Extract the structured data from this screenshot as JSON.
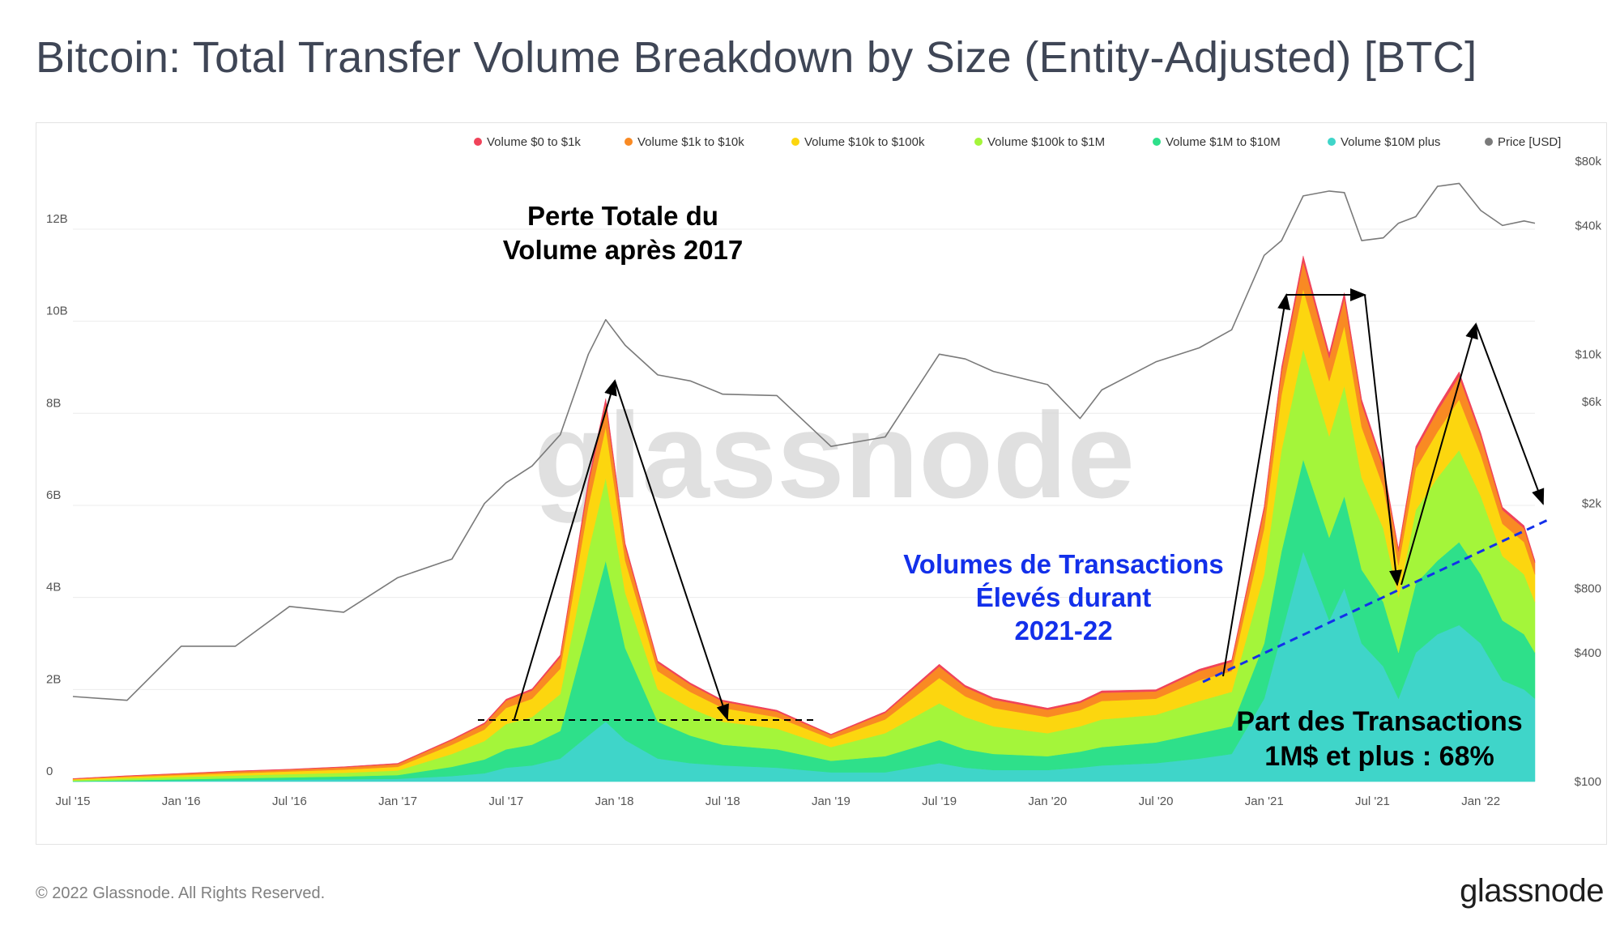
{
  "title": "Bitcoin: Total Transfer Volume Breakdown by Size (Entity-Adjusted) [BTC]",
  "footer": "© 2022 Glassnode. All Rights Reserved.",
  "brand": "glassnode",
  "watermark": "glassnode",
  "colors": {
    "v0_1k": "#f0435a",
    "v1k_10k": "#f98a23",
    "v10k_100k": "#fcd60f",
    "v100k_1m": "#a4f53a",
    "v1m_10m": "#2ee08a",
    "v10m_plus": "#3fd5c9",
    "price": "#7a7a7a",
    "annotation_black": "#000000",
    "annotation_blue": "#1330ea"
  },
  "chart_data": {
    "type": "area",
    "stacked": true,
    "title": "Bitcoin: Total Transfer Volume Breakdown by Size (Entity-Adjusted) [BTC]",
    "xlabel": "",
    "ylabel": "",
    "grid": true,
    "legend_position": "top-right",
    "x_ticks": [
      "Jul '15",
      "Jan '16",
      "Jul '16",
      "Jan '17",
      "Jul '17",
      "Jan '18",
      "Jul '18",
      "Jan '19",
      "Jul '19",
      "Jan '20",
      "Jul '20",
      "Jan '21",
      "Jul '21",
      "Jan '22"
    ],
    "y_left_ticks": [
      "0",
      "2B",
      "4B",
      "6B",
      "8B",
      "10B",
      "12B"
    ],
    "y_left_range": [
      0,
      13600000000
    ],
    "y_right_ticks": [
      "$100",
      "$400",
      "$800",
      "$2k",
      "$6k",
      "$10k",
      "$40k",
      "$80k"
    ],
    "y_right_scale": "log",
    "legend": [
      "Volume $0 to $1k",
      "Volume $1k to $10k",
      "Volume $10k to $100k",
      "Volume $100k to $1M",
      "Volume $1M to $10M",
      "Volume $10M plus",
      "Price [USD]"
    ],
    "x": [
      2015.5,
      2015.75,
      2016.0,
      2016.25,
      2016.5,
      2016.75,
      2017.0,
      2017.25,
      2017.4,
      2017.5,
      2017.62,
      2017.75,
      2017.88,
      2017.96,
      2018.05,
      2018.2,
      2018.35,
      2018.5,
      2018.75,
      2019.0,
      2019.25,
      2019.5,
      2019.62,
      2019.75,
      2020.0,
      2020.15,
      2020.25,
      2020.5,
      2020.7,
      2020.85,
      2021.0,
      2021.08,
      2021.18,
      2021.3,
      2021.37,
      2021.45,
      2021.55,
      2021.62,
      2021.7,
      2021.8,
      2021.9,
      2022.0,
      2022.1,
      2022.2,
      2022.25
    ],
    "series": [
      {
        "name": "Volume $10M plus",
        "values": [
          0.0,
          0.01,
          0.02,
          0.03,
          0.04,
          0.05,
          0.06,
          0.12,
          0.18,
          0.3,
          0.35,
          0.5,
          1.0,
          1.3,
          0.9,
          0.5,
          0.4,
          0.35,
          0.3,
          0.2,
          0.2,
          0.4,
          0.3,
          0.25,
          0.25,
          0.3,
          0.35,
          0.4,
          0.5,
          0.6,
          1.8,
          3.2,
          5.0,
          3.5,
          4.2,
          3.0,
          2.5,
          1.8,
          2.8,
          3.2,
          3.4,
          3.0,
          2.2,
          2.0,
          1.8
        ]
      },
      {
        "name": "Volume $1M to $10M",
        "values": [
          0.01,
          0.02,
          0.03,
          0.04,
          0.05,
          0.06,
          0.08,
          0.2,
          0.3,
          0.4,
          0.45,
          0.6,
          2.4,
          3.5,
          2.0,
          0.8,
          0.6,
          0.45,
          0.4,
          0.25,
          0.35,
          0.5,
          0.4,
          0.35,
          0.3,
          0.35,
          0.4,
          0.45,
          0.55,
          0.6,
          1.2,
          1.8,
          2.0,
          1.8,
          2.0,
          1.6,
          1.4,
          1.0,
          1.5,
          1.6,
          1.8,
          1.5,
          1.3,
          1.2,
          1.0
        ]
      },
      {
        "name": "Volume $100k to $1M",
        "values": [
          0.02,
          0.04,
          0.05,
          0.06,
          0.07,
          0.08,
          0.1,
          0.28,
          0.4,
          0.55,
          0.6,
          0.8,
          1.6,
          1.8,
          1.2,
          0.7,
          0.6,
          0.5,
          0.45,
          0.3,
          0.5,
          0.8,
          0.7,
          0.6,
          0.5,
          0.55,
          0.6,
          0.6,
          0.7,
          0.75,
          1.5,
          2.2,
          2.4,
          2.2,
          2.4,
          2.0,
          1.6,
          1.2,
          1.6,
          1.8,
          2.0,
          1.7,
          1.4,
          1.3,
          1.1
        ]
      },
      {
        "name": "Volume $10k to $100k",
        "values": [
          0.02,
          0.03,
          0.04,
          0.05,
          0.06,
          0.07,
          0.08,
          0.2,
          0.25,
          0.35,
          0.4,
          0.55,
          1.0,
          1.1,
          0.7,
          0.4,
          0.35,
          0.3,
          0.25,
          0.18,
          0.3,
          0.55,
          0.45,
          0.4,
          0.35,
          0.35,
          0.4,
          0.35,
          0.45,
          0.45,
          1.0,
          1.2,
          1.3,
          1.2,
          1.3,
          1.1,
          0.9,
          0.7,
          0.9,
          1.0,
          1.1,
          0.9,
          0.7,
          0.7,
          0.6
        ]
      },
      {
        "name": "Volume $1k to $10k",
        "values": [
          0.01,
          0.02,
          0.03,
          0.04,
          0.04,
          0.05,
          0.06,
          0.1,
          0.12,
          0.16,
          0.18,
          0.25,
          0.45,
          0.5,
          0.3,
          0.18,
          0.16,
          0.14,
          0.12,
          0.08,
          0.14,
          0.25,
          0.2,
          0.18,
          0.16,
          0.16,
          0.18,
          0.16,
          0.2,
          0.2,
          0.4,
          0.5,
          0.6,
          0.5,
          0.6,
          0.5,
          0.4,
          0.3,
          0.4,
          0.45,
          0.5,
          0.4,
          0.3,
          0.3,
          0.25
        ]
      },
      {
        "name": "Volume $0 to $1k",
        "values": [
          0.005,
          0.006,
          0.008,
          0.01,
          0.01,
          0.012,
          0.015,
          0.02,
          0.025,
          0.03,
          0.035,
          0.05,
          0.1,
          0.12,
          0.07,
          0.04,
          0.035,
          0.03,
          0.03,
          0.02,
          0.03,
          0.05,
          0.04,
          0.04,
          0.035,
          0.035,
          0.04,
          0.035,
          0.04,
          0.04,
          0.08,
          0.1,
          0.12,
          0.1,
          0.12,
          0.1,
          0.08,
          0.06,
          0.08,
          0.09,
          0.1,
          0.08,
          0.06,
          0.06,
          0.05
        ]
      }
    ],
    "price_usd": [
      250,
      240,
      430,
      430,
      660,
      620,
      900,
      1100,
      2000,
      2500,
      3000,
      4200,
      10000,
      14500,
      11000,
      8000,
      7500,
      6500,
      6400,
      3700,
      4100,
      10000,
      9500,
      8300,
      7200,
      5000,
      6800,
      9200,
      10700,
      13000,
      29000,
      34000,
      55000,
      58000,
      57000,
      34000,
      35000,
      41000,
      44000,
      61000,
      63000,
      47000,
      40000,
      42000,
      41000
    ],
    "value_unit": "B",
    "annotations": [
      {
        "text": "Perte Totale du\nVolume après 2017"
      },
      {
        "text": "Volumes de Transactions\nÉlevés durant\n2021-22"
      },
      {
        "text": "Part des Transactions\n1M$ et plus : 68%"
      }
    ]
  }
}
